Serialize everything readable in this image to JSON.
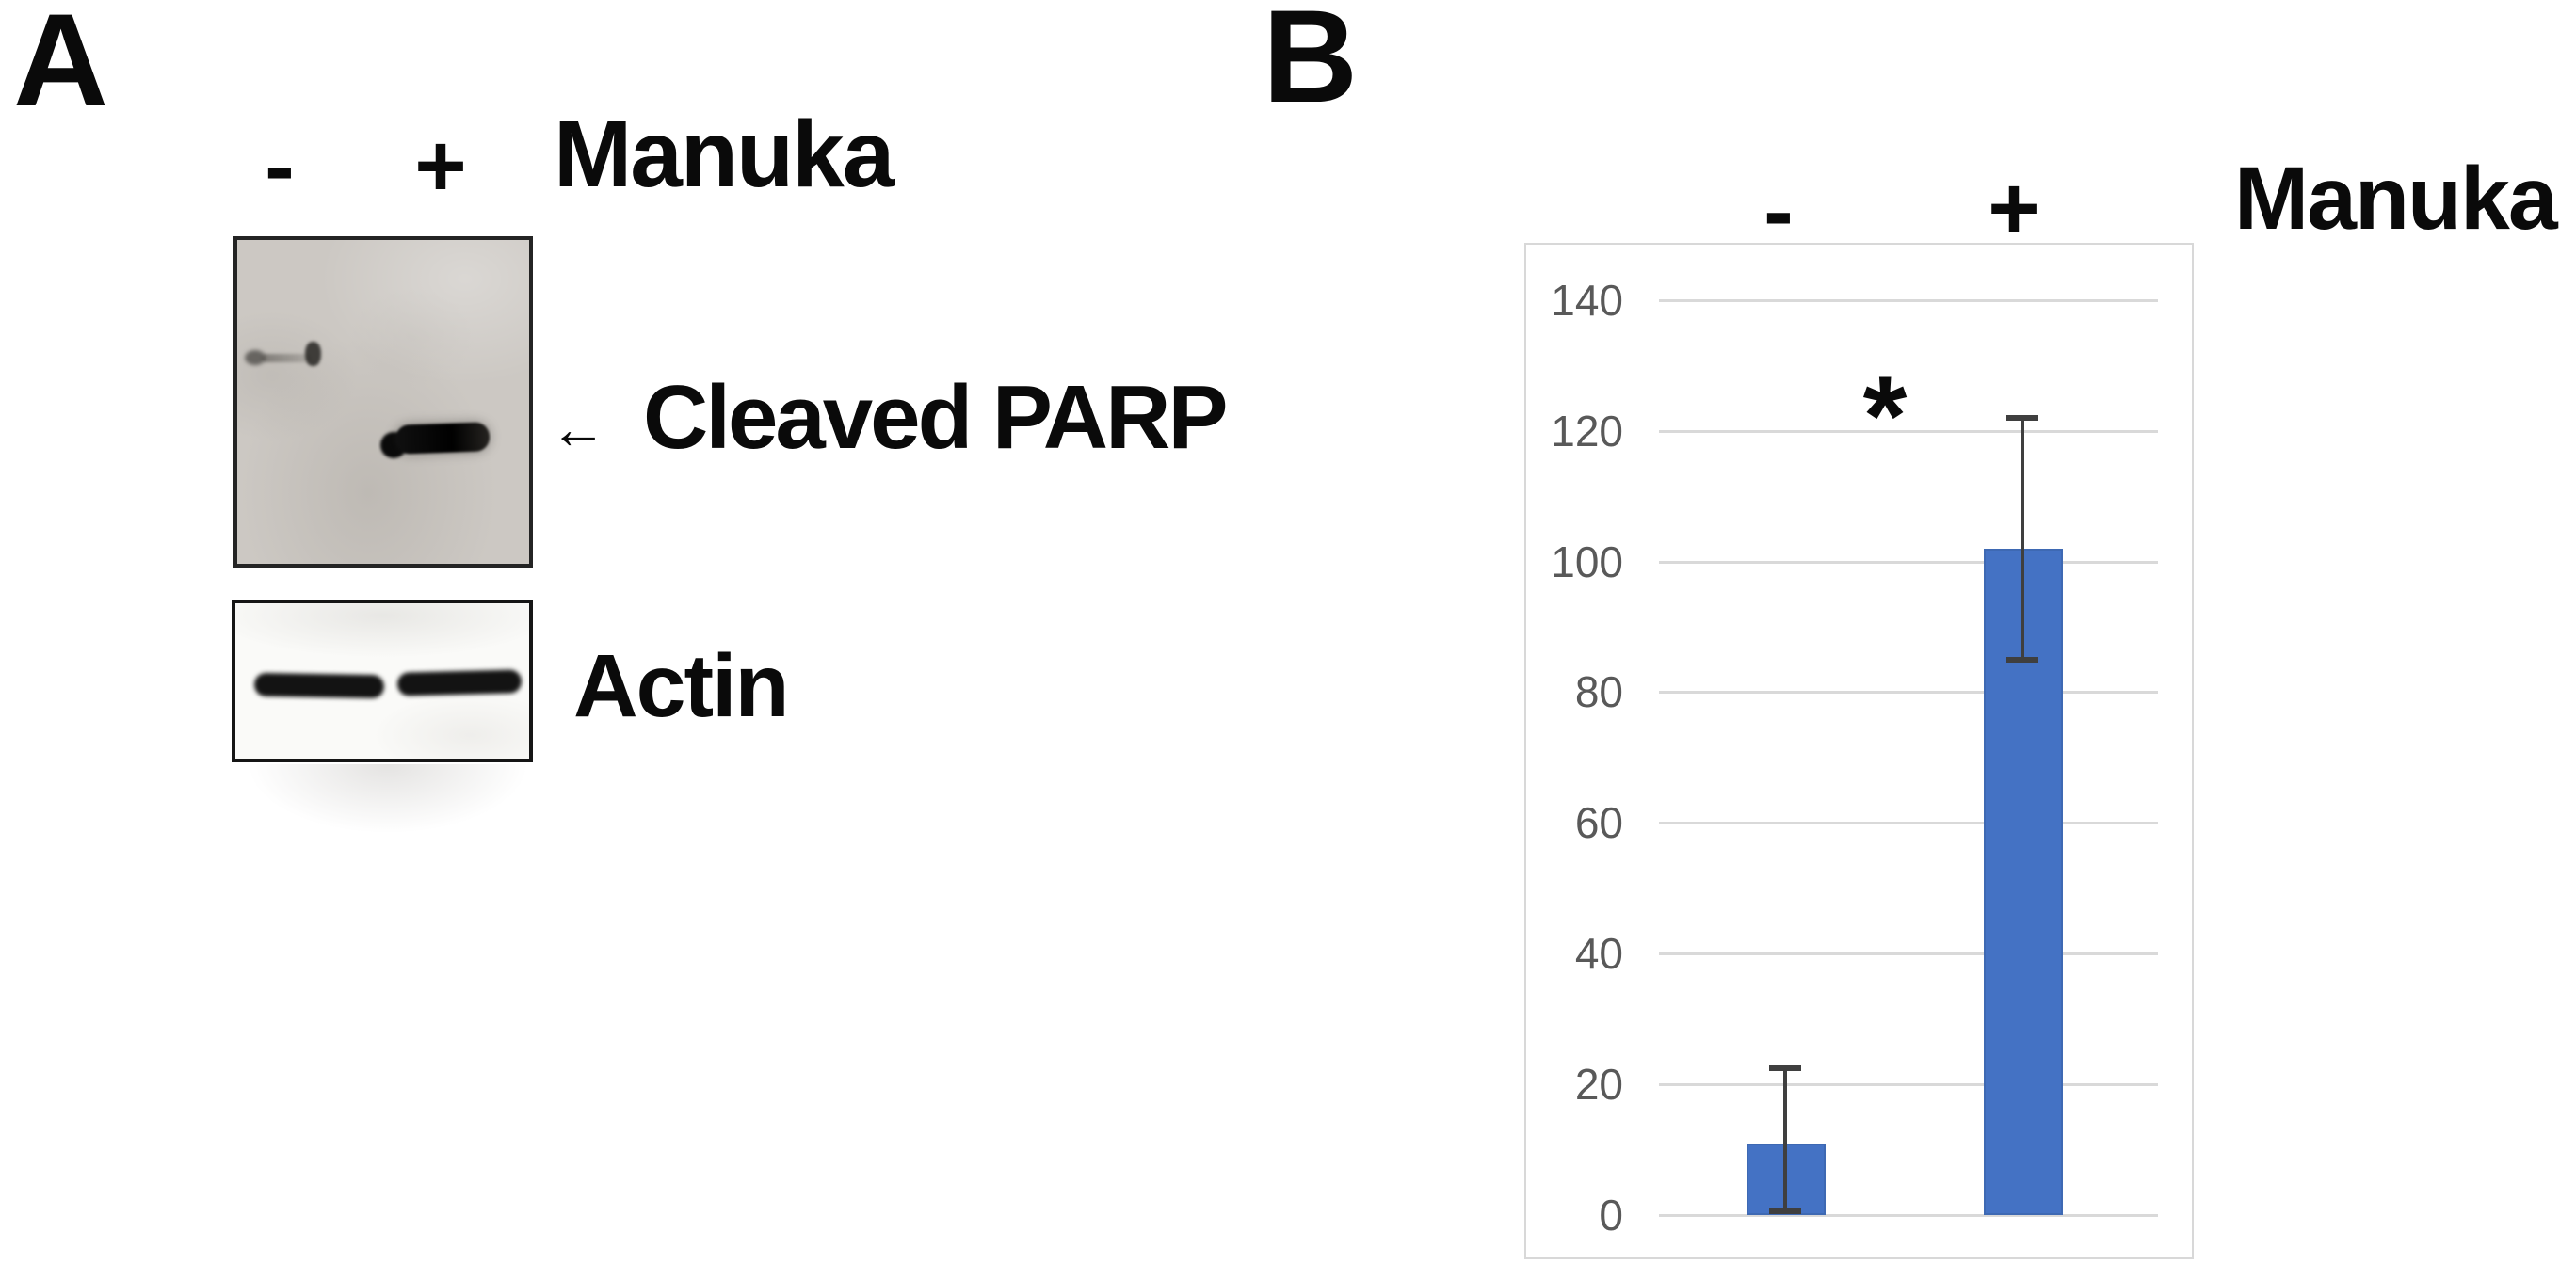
{
  "panel_a": {
    "label": "A",
    "lane_minus": "-",
    "lane_plus": "+",
    "treatment": "Manuka",
    "arrow": "←",
    "band_annotation": "Cleaved PARP",
    "loading_control": "Actin"
  },
  "panel_b": {
    "label": "B",
    "lane_minus": "-",
    "lane_plus": "+",
    "treatment": "Manuka",
    "significance": "*"
  },
  "chart_data": {
    "type": "bar",
    "categories": [
      "-",
      "+"
    ],
    "values": [
      11,
      102
    ],
    "error_low": [
      0.6,
      85
    ],
    "error_high": [
      22.5,
      122
    ],
    "yticks": [
      0,
      20,
      40,
      60,
      80,
      100,
      120,
      140
    ],
    "ylim": [
      0,
      148
    ],
    "title": "",
    "xlabel": "",
    "ylabel": "",
    "grid": true,
    "legend": false,
    "annotations": [
      {
        "text": "*",
        "between_categories": true
      }
    ],
    "bar_color": "#4472c4",
    "bar_edge_color": "#3e69b3",
    "error_color": "#3f3f3f",
    "grid_color": "#d9d9d9",
    "tick_color": "#595959"
  }
}
